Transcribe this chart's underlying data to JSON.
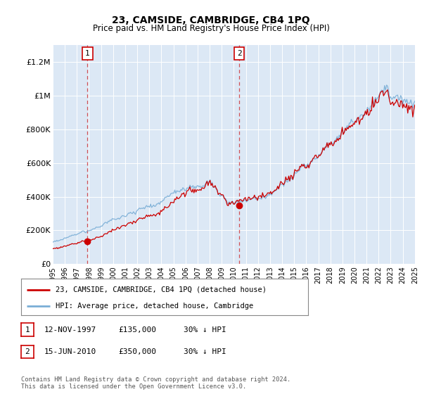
{
  "title": "23, CAMSIDE, CAMBRIDGE, CB4 1PQ",
  "subtitle": "Price paid vs. HM Land Registry's House Price Index (HPI)",
  "legend_line1": "23, CAMSIDE, CAMBRIDGE, CB4 1PQ (detached house)",
  "legend_line2": "HPI: Average price, detached house, Cambridge",
  "footer": "Contains HM Land Registry data © Crown copyright and database right 2024.\nThis data is licensed under the Open Government Licence v3.0.",
  "transactions": [
    {
      "label": "1",
      "date": "12-NOV-1997",
      "price": "£135,000",
      "hpi": "30% ↓ HPI",
      "year": 1997.87,
      "price_val": 135000
    },
    {
      "label": "2",
      "date": "15-JUN-2010",
      "price": "£350,000",
      "hpi": "30% ↓ HPI",
      "year": 2010.45,
      "price_val": 350000
    }
  ],
  "bg_color": "#dce8f5",
  "red_color": "#cc0000",
  "blue_color": "#7aaed6",
  "ylim": [
    0,
    1300000
  ],
  "yticks": [
    0,
    200000,
    400000,
    600000,
    800000,
    1000000,
    1200000
  ],
  "ytick_labels": [
    "£0",
    "£200K",
    "£400K",
    "£600K",
    "£800K",
    "£1M",
    "£1.2M"
  ],
  "xstart": 1995,
  "xend": 2025
}
